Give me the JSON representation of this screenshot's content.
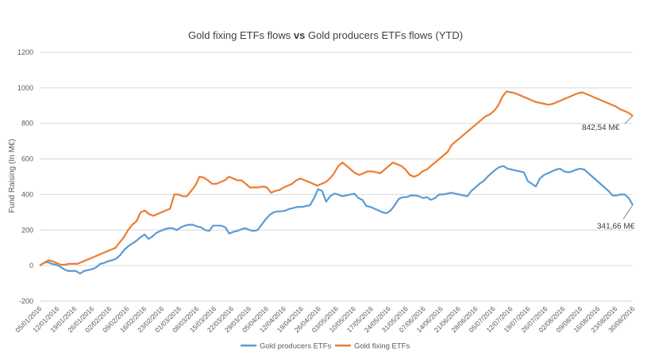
{
  "chart_data": {
    "type": "line",
    "title_part1": "Gold fixing ETFs flows ",
    "title_bold": "vs",
    "title_part2": " Gold producers ETFs flows (YTD)",
    "ylabel": "Fund Raising (In M€)",
    "xlabel": "",
    "ylim": [
      -200,
      1200
    ],
    "yticks": [
      -200,
      0,
      200,
      400,
      600,
      800,
      1000,
      1200
    ],
    "grid": true,
    "legend_position": "bottom",
    "x_tick_labels": [
      "05/01/2016",
      "12/01/2016",
      "19/01/2016",
      "26/01/2016",
      "02/02/2016",
      "09/02/2016",
      "16/02/2016",
      "23/02/2016",
      "01/03/2016",
      "08/03/2016",
      "15/03/2016",
      "22/03/2016",
      "29/03/2016",
      "05/04/2016",
      "12/04/2016",
      "19/04/2016",
      "26/04/2016",
      "03/05/2016",
      "10/05/2016",
      "17/05/2016",
      "24/05/2016",
      "31/05/2016",
      "07/06/2016",
      "14/06/2016",
      "21/06/2016",
      "28/06/2016",
      "05/07/2016",
      "12/07/2016",
      "19/07/2016",
      "26/07/2016",
      "02/08/2016",
      "09/08/2016",
      "16/08/2016",
      "23/08/2016",
      "30/08/2016"
    ],
    "series": [
      {
        "name": "Gold producers ETFs",
        "color": "#5b9bd5",
        "values": [
          0,
          15,
          20,
          10,
          5,
          -5,
          -20,
          -30,
          -30,
          -30,
          -45,
          -30,
          -25,
          -20,
          -10,
          10,
          15,
          25,
          30,
          40,
          60,
          90,
          110,
          125,
          140,
          160,
          175,
          150,
          165,
          185,
          195,
          205,
          210,
          210,
          200,
          215,
          225,
          230,
          230,
          220,
          215,
          200,
          195,
          225,
          225,
          225,
          215,
          180,
          190,
          195,
          205,
          210,
          200,
          195,
          200,
          230,
          260,
          285,
          300,
          305,
          305,
          310,
          320,
          325,
          330,
          330,
          335,
          340,
          380,
          430,
          420,
          360,
          390,
          405,
          400,
          390,
          395,
          400,
          405,
          380,
          370,
          335,
          330,
          320,
          310,
          300,
          295,
          310,
          340,
          375,
          385,
          385,
          395,
          395,
          390,
          380,
          385,
          370,
          380,
          400,
          400,
          405,
          410,
          405,
          400,
          395,
          390,
          420,
          440,
          460,
          475,
          500,
          520,
          540,
          555,
          560,
          545,
          540,
          535,
          530,
          525,
          475,
          460,
          445,
          490,
          510,
          520,
          530,
          540,
          545,
          530,
          525,
          530,
          540,
          545,
          540,
          520,
          500,
          480,
          460,
          440,
          420,
          395,
          395,
          400,
          400,
          380,
          341.66
        ]
      },
      {
        "name": "Gold fixing ETFs",
        "color": "#ed7d31",
        "values": [
          0,
          15,
          30,
          25,
          15,
          5,
          5,
          10,
          10,
          10,
          20,
          30,
          40,
          50,
          60,
          70,
          80,
          90,
          100,
          130,
          160,
          200,
          230,
          250,
          300,
          310,
          290,
          280,
          290,
          300,
          310,
          320,
          400,
          400,
          390,
          390,
          420,
          450,
          500,
          495,
          480,
          460,
          460,
          470,
          480,
          500,
          490,
          480,
          480,
          460,
          440,
          440,
          440,
          445,
          440,
          410,
          420,
          425,
          440,
          450,
          460,
          480,
          490,
          480,
          470,
          460,
          450,
          460,
          470,
          490,
          520,
          560,
          580,
          560,
          540,
          520,
          510,
          520,
          530,
          530,
          525,
          520,
          540,
          560,
          580,
          570,
          560,
          540,
          510,
          500,
          510,
          530,
          540,
          560,
          580,
          600,
          620,
          640,
          680,
          700,
          720,
          740,
          760,
          780,
          800,
          820,
          840,
          850,
          870,
          900,
          950,
          980,
          975,
          970,
          960,
          950,
          940,
          930,
          920,
          915,
          910,
          905,
          910,
          920,
          930,
          940,
          950,
          960,
          970,
          975,
          965,
          955,
          945,
          935,
          925,
          915,
          905,
          895,
          880,
          870,
          860,
          842.54
        ]
      }
    ],
    "annotations": [
      {
        "text": "842,54 M€",
        "series": 1
      },
      {
        "text": "341,66 M€",
        "series": 0
      }
    ]
  }
}
